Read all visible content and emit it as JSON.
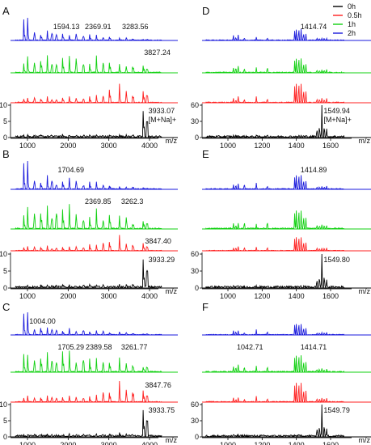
{
  "legend": {
    "position": "top-right",
    "items": [
      {
        "label": "0h",
        "color": "#000000"
      },
      {
        "label": "0.5h",
        "color": "#ff2020"
      },
      {
        "label": "1h",
        "color": "#10d010"
      },
      {
        "label": "2h",
        "color": "#1a1adc"
      }
    ]
  },
  "colors": {
    "0h": "#000000",
    "0.5h": "#ff2020",
    "1h": "#10d010",
    "2h": "#1a1adc"
  },
  "chart_data": [
    {
      "panel": "A",
      "type": "line",
      "x_unit": "m/z",
      "xlim": [
        700,
        4300
      ],
      "x_ticks": [
        1000,
        2000,
        3000,
        4000
      ],
      "y_ticks": [
        0,
        5,
        10
      ],
      "series": [
        {
          "name": "2h",
          "label_peaks": [
            {
              "x": 1594.13,
              "label": "1594.13"
            },
            {
              "x": 2369.91,
              "label": "2369.91"
            },
            {
              "x": 3283.56,
              "label": "3283.56"
            }
          ]
        },
        {
          "name": "1h",
          "label_peaks": [
            {
              "x": 3827.24,
              "label": "3827.24"
            }
          ]
        },
        {
          "name": "0.5h",
          "label_peaks": []
        },
        {
          "name": "0h",
          "label_peaks": [
            {
              "x": 3933.07,
              "label": "3933.07"
            }
          ],
          "annotation": "[M+Na]+"
        }
      ]
    },
    {
      "panel": "B",
      "type": "line",
      "x_unit": "m/z",
      "xlim": [
        700,
        4300
      ],
      "x_ticks": [
        1000,
        2000,
        3000,
        4000
      ],
      "y_ticks": [
        0,
        5,
        10
      ],
      "series": [
        {
          "name": "2h",
          "label_peaks": [
            {
              "x": 1704.69,
              "label": "1704.69"
            }
          ]
        },
        {
          "name": "1h",
          "label_peaks": [
            {
              "x": 2369.85,
              "label": "2369.85"
            },
            {
              "x": 3262.3,
              "label": "3262.3"
            }
          ]
        },
        {
          "name": "0.5h",
          "label_peaks": [
            {
              "x": 3847.4,
              "label": "3847.40"
            }
          ]
        },
        {
          "name": "0h",
          "label_peaks": [
            {
              "x": 3933.29,
              "label": "3933.29"
            }
          ]
        }
      ]
    },
    {
      "panel": "C",
      "type": "line",
      "x_unit": "m/z",
      "xlim": [
        700,
        4300
      ],
      "x_ticks": [
        1000,
        2000,
        3000,
        4000
      ],
      "y_ticks": [
        0,
        5,
        10
      ],
      "series": [
        {
          "name": "2h",
          "label_peaks": [
            {
              "x": 1004.0,
              "label": "1004.00"
            }
          ]
        },
        {
          "name": "1h",
          "label_peaks": [
            {
              "x": 1705.29,
              "label": "1705.29"
            },
            {
              "x": 2389.58,
              "label": "2389.58"
            },
            {
              "x": 3261.77,
              "label": "3261.77"
            }
          ]
        },
        {
          "name": "0.5h",
          "label_peaks": [
            {
              "x": 3847.76,
              "label": "3847.76"
            }
          ]
        },
        {
          "name": "0h",
          "label_peaks": [
            {
              "x": 3933.75,
              "label": "3933.75"
            }
          ]
        }
      ]
    },
    {
      "panel": "D",
      "type": "line",
      "x_unit": "m/z",
      "xlim": [
        870,
        1680
      ],
      "x_ticks": [
        1000,
        1200,
        1400,
        1600
      ],
      "y_ticks": [
        0,
        30,
        60
      ],
      "series": [
        {
          "name": "2h",
          "label_peaks": [
            {
              "x": 1414.74,
              "label": "1414.74"
            }
          ]
        },
        {
          "name": "1h",
          "label_peaks": []
        },
        {
          "name": "0.5h",
          "label_peaks": []
        },
        {
          "name": "0h",
          "label_peaks": [
            {
              "x": 1549.94,
              "label": "1549.94"
            }
          ],
          "annotation": "[M+Na]+"
        }
      ]
    },
    {
      "panel": "E",
      "type": "line",
      "x_unit": "m/z",
      "xlim": [
        870,
        1680
      ],
      "x_ticks": [
        1000,
        1200,
        1400,
        1600
      ],
      "y_ticks": [
        0,
        30,
        60
      ],
      "series": [
        {
          "name": "2h",
          "label_peaks": [
            {
              "x": 1414.89,
              "label": "1414.89"
            }
          ]
        },
        {
          "name": "1h",
          "label_peaks": []
        },
        {
          "name": "0.5h",
          "label_peaks": []
        },
        {
          "name": "0h",
          "label_peaks": [
            {
              "x": 1549.8,
              "label": "1549.80"
            }
          ]
        }
      ]
    },
    {
      "panel": "F",
      "type": "line",
      "x_unit": "m/z",
      "xlim": [
        870,
        1680
      ],
      "x_ticks": [
        1000,
        1200,
        1400,
        1600
      ],
      "y_ticks": [
        0,
        30,
        60
      ],
      "series": [
        {
          "name": "2h",
          "label_peaks": []
        },
        {
          "name": "1h",
          "label_peaks": [
            {
              "x": 1042.71,
              "label": "1042.71"
            },
            {
              "x": 1414.71,
              "label": "1414.71"
            }
          ]
        },
        {
          "name": "0.5h",
          "label_peaks": []
        },
        {
          "name": "0h",
          "label_peaks": [
            {
              "x": 1549.79,
              "label": "1549.79"
            }
          ]
        }
      ]
    }
  ]
}
